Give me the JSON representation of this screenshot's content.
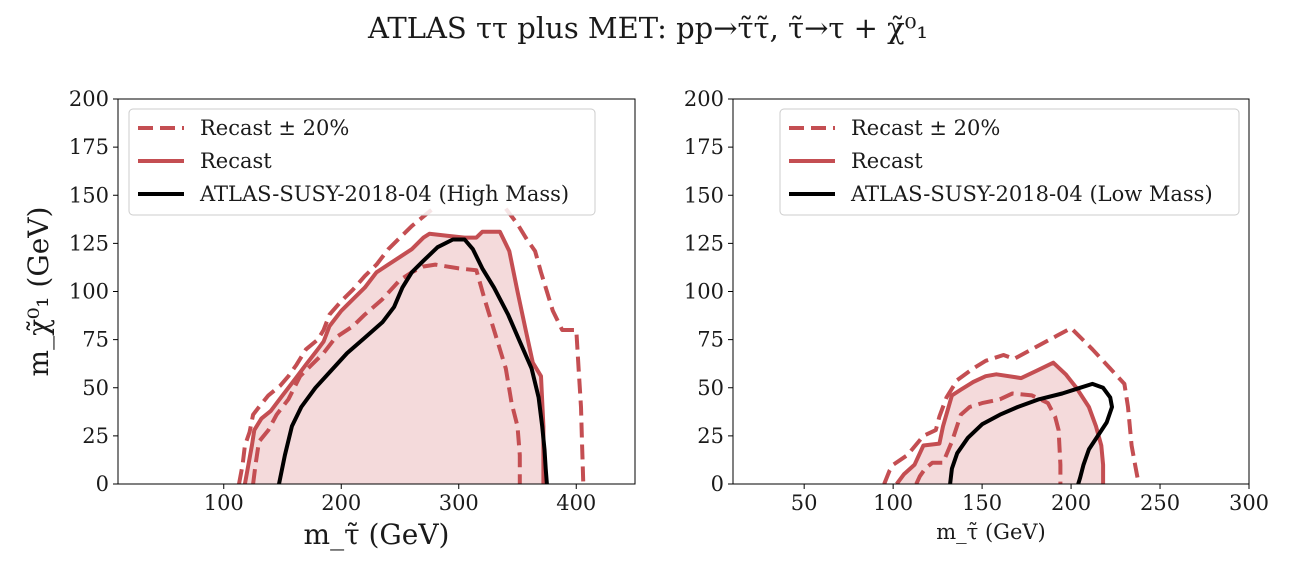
{
  "figure": {
    "title": "ATLAS ττ plus MET: pp→τ̃τ̃, τ̃→τ + χ̃⁰₁"
  },
  "chart_data": [
    {
      "type": "line",
      "xlabel": "m_τ̃ (GeV)",
      "ylabel": "m_χ̃⁰₁ (GeV)",
      "xlim": [
        10,
        450
      ],
      "ylim": [
        0,
        200
      ],
      "xticks": [
        100,
        200,
        300,
        400
      ],
      "yticks": [
        0,
        25,
        50,
        75,
        100,
        125,
        150,
        175,
        200
      ],
      "grid": false,
      "legend": "top-left",
      "legend_entries": [
        "Recast ± 20%",
        "Recast",
        "ATLAS-SUSY-2018-04 (High Mass)"
      ],
      "series": [
        {
          "name": "Recast ± 20%",
          "style": "dashed",
          "color": "#c44e52",
          "points": [
            [
              113,
              0
            ],
            [
              116,
              10
            ],
            [
              118,
              20
            ],
            [
              122,
              27
            ],
            [
              125,
              36
            ],
            [
              130,
              40
            ],
            [
              138,
              46
            ],
            [
              148,
              51
            ],
            [
              155,
              56
            ],
            [
              162,
              62
            ],
            [
              170,
              70
            ],
            [
              180,
              75
            ],
            [
              185,
              80
            ],
            [
              190,
              88
            ],
            [
              200,
              95
            ],
            [
              210,
              101
            ],
            [
              220,
              108
            ],
            [
              230,
              114
            ],
            [
              240,
              122
            ],
            [
              250,
              128
            ],
            [
              260,
              134
            ],
            [
              270,
              139
            ],
            [
              278,
              143
            ]
          ]
        },
        {
          "name": "Recast ± 20%",
          "style": "dashed",
          "color": "#c44e52",
          "points": [
            [
              340,
              143
            ],
            [
              350,
              135
            ],
            [
              358,
              127
            ],
            [
              365,
              121
            ],
            [
              370,
              110
            ],
            [
              375,
              100
            ],
            [
              380,
              90
            ],
            [
              388,
              80
            ],
            [
              400,
              80
            ],
            [
              402,
              60
            ],
            [
              404,
              40
            ],
            [
              405,
              20
            ],
            [
              406,
              0
            ]
          ]
        },
        {
          "name": "Recast ± 20%",
          "style": "dashed",
          "color": "#c44e52",
          "points": [
            [
              125,
              0
            ],
            [
              127,
              10
            ],
            [
              130,
              22
            ],
            [
              138,
              28
            ],
            [
              145,
              36
            ],
            [
              155,
              44
            ],
            [
              165,
              56
            ],
            [
              175,
              62
            ],
            [
              185,
              68
            ],
            [
              195,
              76
            ],
            [
              210,
              82
            ],
            [
              220,
              88
            ],
            [
              235,
              96
            ],
            [
              250,
              106
            ],
            [
              260,
              110
            ],
            [
              270,
              113
            ],
            [
              280,
              114
            ],
            [
              300,
              112
            ],
            [
              315,
              111
            ],
            [
              322,
              96
            ],
            [
              330,
              80
            ],
            [
              340,
              60
            ],
            [
              345,
              42
            ],
            [
              350,
              30
            ],
            [
              352,
              15
            ],
            [
              352,
              0
            ]
          ]
        },
        {
          "name": "Recast",
          "style": "solid",
          "color": "#c44e52",
          "fill": "#f4dadb",
          "points": [
            [
              118,
              0
            ],
            [
              121,
              10
            ],
            [
              124,
              20
            ],
            [
              126,
              28
            ],
            [
              132,
              34
            ],
            [
              140,
              38
            ],
            [
              150,
              46
            ],
            [
              160,
              54
            ],
            [
              170,
              62
            ],
            [
              180,
              70
            ],
            [
              185,
              74
            ],
            [
              190,
              82
            ],
            [
              200,
              90
            ],
            [
              210,
              96
            ],
            [
              220,
              102
            ],
            [
              230,
              110
            ],
            [
              240,
              114
            ],
            [
              250,
              118
            ],
            [
              260,
              122
            ],
            [
              270,
              128
            ],
            [
              275,
              130
            ],
            [
              290,
              129
            ],
            [
              305,
              128
            ],
            [
              315,
              128
            ],
            [
              320,
              131
            ],
            [
              335,
              131
            ],
            [
              343,
              121
            ],
            [
              350,
              100
            ],
            [
              357,
              80
            ],
            [
              363,
              63
            ],
            [
              370,
              56
            ],
            [
              372,
              30
            ],
            [
              372,
              0
            ]
          ]
        },
        {
          "name": "ATLAS-SUSY-2018-04 (High Mass)",
          "style": "solid",
          "color": "#000000",
          "points": [
            [
              147,
              0
            ],
            [
              152,
              15
            ],
            [
              158,
              30
            ],
            [
              166,
              40
            ],
            [
              178,
              50
            ],
            [
              190,
              58
            ],
            [
              205,
              68
            ],
            [
              220,
              76
            ],
            [
              235,
              84
            ],
            [
              245,
              92
            ],
            [
              252,
              102
            ],
            [
              260,
              110
            ],
            [
              270,
              116
            ],
            [
              282,
              123
            ],
            [
              295,
              127
            ],
            [
              305,
              127
            ],
            [
              312,
              122
            ],
            [
              320,
              112
            ],
            [
              330,
              102
            ],
            [
              342,
              88
            ],
            [
              352,
              74
            ],
            [
              362,
              60
            ],
            [
              368,
              45
            ],
            [
              371,
              30
            ],
            [
              373,
              18
            ],
            [
              374,
              8
            ],
            [
              375,
              0
            ]
          ]
        }
      ]
    },
    {
      "type": "line",
      "xlabel": "m_τ̃ (GeV)",
      "ylabel": "",
      "xlim": [
        10,
        300
      ],
      "ylim": [
        0,
        200
      ],
      "xticks": [
        50,
        100,
        150,
        200,
        250,
        300
      ],
      "yticks": [
        0,
        25,
        50,
        75,
        100,
        125,
        150,
        175,
        200
      ],
      "grid": false,
      "legend": "top-right",
      "legend_entries": [
        "Recast ± 20%",
        "Recast",
        "ATLAS-SUSY-2018-04 (Low Mass)"
      ],
      "series": [
        {
          "name": "Recast ± 20%",
          "style": "dashed",
          "color": "#c44e52",
          "points": [
            [
              95,
              0
            ],
            [
              98,
              7
            ],
            [
              100,
              10
            ],
            [
              108,
              15
            ],
            [
              117,
              25
            ],
            [
              124,
              28
            ],
            [
              126,
              35
            ],
            [
              130,
              45
            ],
            [
              136,
              54
            ],
            [
              145,
              60
            ],
            [
              152,
              64
            ],
            [
              162,
              67
            ],
            [
              168,
              65
            ],
            [
              180,
              71
            ],
            [
              192,
              77
            ],
            [
              200,
              81
            ],
            [
              212,
              70
            ],
            [
              222,
              60
            ],
            [
              230,
              52
            ],
            [
              232,
              40
            ],
            [
              234,
              20
            ],
            [
              236,
              10
            ],
            [
              238,
              0
            ]
          ]
        },
        {
          "name": "Recast ± 20%",
          "style": "dashed",
          "color": "#c44e52",
          "points": [
            [
              113,
              0
            ],
            [
              115,
              4
            ],
            [
              118,
              8
            ],
            [
              122,
              11
            ],
            [
              128,
              11
            ],
            [
              133,
              22
            ],
            [
              138,
              36
            ],
            [
              143,
              40
            ],
            [
              150,
              42
            ],
            [
              160,
              44
            ],
            [
              167,
              47
            ],
            [
              178,
              46
            ],
            [
              187,
              42
            ],
            [
              191,
              35
            ],
            [
              193,
              28
            ],
            [
              194,
              10
            ],
            [
              194,
              0
            ]
          ]
        },
        {
          "name": "Recast",
          "style": "solid",
          "color": "#c44e52",
          "fill": "#f4dadb",
          "points": [
            [
              102,
              0
            ],
            [
              106,
              5
            ],
            [
              112,
              10
            ],
            [
              117,
              20
            ],
            [
              126,
              21
            ],
            [
              128,
              30
            ],
            [
              133,
              46
            ],
            [
              138,
              49
            ],
            [
              145,
              53
            ],
            [
              152,
              56
            ],
            [
              158,
              57
            ],
            [
              172,
              55
            ],
            [
              181,
              59
            ],
            [
              190,
              63
            ],
            [
              197,
              57
            ],
            [
              203,
              50
            ],
            [
              210,
              40
            ],
            [
              214,
              30
            ],
            [
              217,
              20
            ],
            [
              218,
              10
            ],
            [
              218,
              0
            ]
          ]
        },
        {
          "name": "ATLAS-SUSY-2018-04 (Low Mass)",
          "style": "solid",
          "color": "#000000",
          "points": [
            [
              132,
              0
            ],
            [
              133,
              8
            ],
            [
              136,
              16
            ],
            [
              142,
              24
            ],
            [
              150,
              31
            ],
            [
              160,
              36
            ],
            [
              170,
              40
            ],
            [
              182,
              44
            ],
            [
              195,
              47
            ],
            [
              205,
              50
            ],
            [
              212,
              52
            ],
            [
              218,
              50
            ],
            [
              222,
              45
            ],
            [
              223,
              40
            ],
            [
              220,
              32
            ],
            [
              215,
              25
            ],
            [
              210,
              18
            ],
            [
              207,
              10
            ],
            [
              205,
              3
            ],
            [
              204,
              0
            ]
          ]
        }
      ]
    }
  ]
}
